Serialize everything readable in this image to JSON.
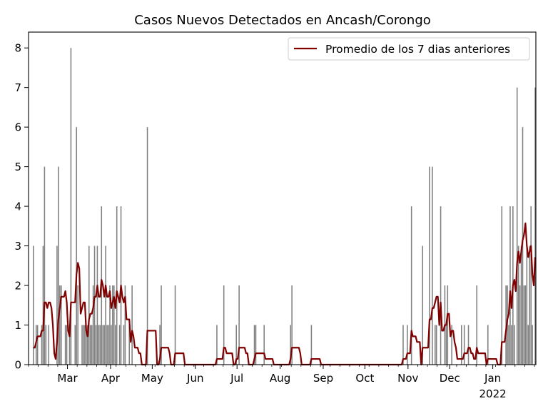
{
  "chart_data": {
    "type": "bar",
    "title": "Casos Nuevos Detectados en Ancash/Corongo",
    "xlabel": "",
    "ylabel": "",
    "x_start": "2021-02-01",
    "x_end": "2022-02-01",
    "ylim": [
      0,
      8.4
    ],
    "y_ticks": [
      0,
      1,
      2,
      3,
      4,
      5,
      6,
      7,
      8
    ],
    "x_ticks": [
      {
        "date": "2021-03-01",
        "label": "Mar"
      },
      {
        "date": "2021-04-01",
        "label": "Apr"
      },
      {
        "date": "2021-05-01",
        "label": "May"
      },
      {
        "date": "2021-06-01",
        "label": "Jun"
      },
      {
        "date": "2021-07-01",
        "label": "Jul"
      },
      {
        "date": "2021-08-01",
        "label": "Aug"
      },
      {
        "date": "2021-09-01",
        "label": "Sep"
      },
      {
        "date": "2021-10-01",
        "label": "Oct"
      },
      {
        "date": "2021-11-01",
        "label": "Nov"
      },
      {
        "date": "2021-12-01",
        "label": "Dec"
      },
      {
        "date": "2022-01-01",
        "label": "Jan",
        "sublabel": "2022"
      }
    ],
    "legend": {
      "placement": "top-right",
      "label": "Promedio de los 7 dias anteriores"
    },
    "colors": {
      "bars": "#808080",
      "line": "#800000"
    },
    "daily_cases": [
      [
        "2021-02-04",
        3
      ],
      [
        "2021-02-06",
        1
      ],
      [
        "2021-02-07",
        1
      ],
      [
        "2021-02-10",
        1
      ],
      [
        "2021-02-11",
        3
      ],
      [
        "2021-02-12",
        5
      ],
      [
        "2021-02-13",
        1
      ],
      [
        "2021-02-15",
        1
      ],
      [
        "2021-02-21",
        3
      ],
      [
        "2021-02-22",
        5
      ],
      [
        "2021-02-23",
        2
      ],
      [
        "2021-02-24",
        2
      ],
      [
        "2021-02-27",
        1
      ],
      [
        "2021-02-28",
        1
      ],
      [
        "2021-03-02",
        1
      ],
      [
        "2021-03-03",
        8
      ],
      [
        "2021-03-06",
        1
      ],
      [
        "2021-03-07",
        6
      ],
      [
        "2021-03-08",
        2
      ],
      [
        "2021-03-11",
        1
      ],
      [
        "2021-03-12",
        1
      ],
      [
        "2021-03-13",
        1
      ],
      [
        "2021-03-14",
        1
      ],
      [
        "2021-03-15",
        1
      ],
      [
        "2021-03-16",
        3
      ],
      [
        "2021-03-17",
        1
      ],
      [
        "2021-03-18",
        1
      ],
      [
        "2021-03-19",
        2
      ],
      [
        "2021-03-20",
        3
      ],
      [
        "2021-03-21",
        1
      ],
      [
        "2021-03-22",
        3
      ],
      [
        "2021-03-23",
        1
      ],
      [
        "2021-03-24",
        1
      ],
      [
        "2021-03-25",
        4
      ],
      [
        "2021-03-26",
        1
      ],
      [
        "2021-03-27",
        1
      ],
      [
        "2021-03-28",
        3
      ],
      [
        "2021-03-29",
        1
      ],
      [
        "2021-03-30",
        1
      ],
      [
        "2021-03-31",
        2
      ],
      [
        "2021-04-01",
        1
      ],
      [
        "2021-04-02",
        2
      ],
      [
        "2021-04-03",
        2
      ],
      [
        "2021-04-04",
        1
      ],
      [
        "2021-04-05",
        4
      ],
      [
        "2021-04-07",
        1
      ],
      [
        "2021-04-08",
        4
      ],
      [
        "2021-04-10",
        1
      ],
      [
        "2021-04-11",
        2
      ],
      [
        "2021-04-14",
        1
      ],
      [
        "2021-04-16",
        2
      ],
      [
        "2021-04-27",
        6
      ],
      [
        "2021-05-06",
        1
      ],
      [
        "2021-05-07",
        2
      ],
      [
        "2021-05-17",
        2
      ],
      [
        "2021-06-16",
        1
      ],
      [
        "2021-06-21",
        2
      ],
      [
        "2021-06-30",
        1
      ],
      [
        "2021-07-02",
        2
      ],
      [
        "2021-07-13",
        1
      ],
      [
        "2021-07-14",
        1
      ],
      [
        "2021-07-20",
        1
      ],
      [
        "2021-08-08",
        1
      ],
      [
        "2021-08-09",
        2
      ],
      [
        "2021-08-23",
        1
      ],
      [
        "2021-10-28",
        1
      ],
      [
        "2021-10-31",
        1
      ],
      [
        "2021-11-03",
        4
      ],
      [
        "2021-11-11",
        3
      ],
      [
        "2021-11-16",
        5
      ],
      [
        "2021-11-18",
        5
      ],
      [
        "2021-11-20",
        1
      ],
      [
        "2021-11-21",
        1
      ],
      [
        "2021-11-24",
        4
      ],
      [
        "2021-11-27",
        2
      ],
      [
        "2021-11-28",
        1
      ],
      [
        "2021-11-29",
        2
      ],
      [
        "2021-12-02",
        1
      ],
      [
        "2021-12-09",
        1
      ],
      [
        "2021-12-11",
        1
      ],
      [
        "2021-12-14",
        1
      ],
      [
        "2021-12-20",
        2
      ],
      [
        "2021-12-28",
        1
      ],
      [
        "2022-01-07",
        4
      ],
      [
        "2022-01-10",
        2
      ],
      [
        "2022-01-11",
        2
      ],
      [
        "2022-01-12",
        1
      ],
      [
        "2022-01-13",
        4
      ],
      [
        "2022-01-14",
        1
      ],
      [
        "2022-01-15",
        4
      ],
      [
        "2022-01-16",
        1
      ],
      [
        "2022-01-18",
        7
      ],
      [
        "2022-01-19",
        3
      ],
      [
        "2022-01-20",
        2
      ],
      [
        "2022-01-21",
        3
      ],
      [
        "2022-01-22",
        6
      ],
      [
        "2022-01-23",
        2
      ],
      [
        "2022-01-24",
        2
      ],
      [
        "2022-01-25",
        3
      ],
      [
        "2022-01-26",
        1
      ],
      [
        "2022-01-27",
        3
      ],
      [
        "2022-01-28",
        4
      ],
      [
        "2022-01-29",
        1
      ],
      [
        "2022-01-31",
        7
      ]
    ]
  }
}
